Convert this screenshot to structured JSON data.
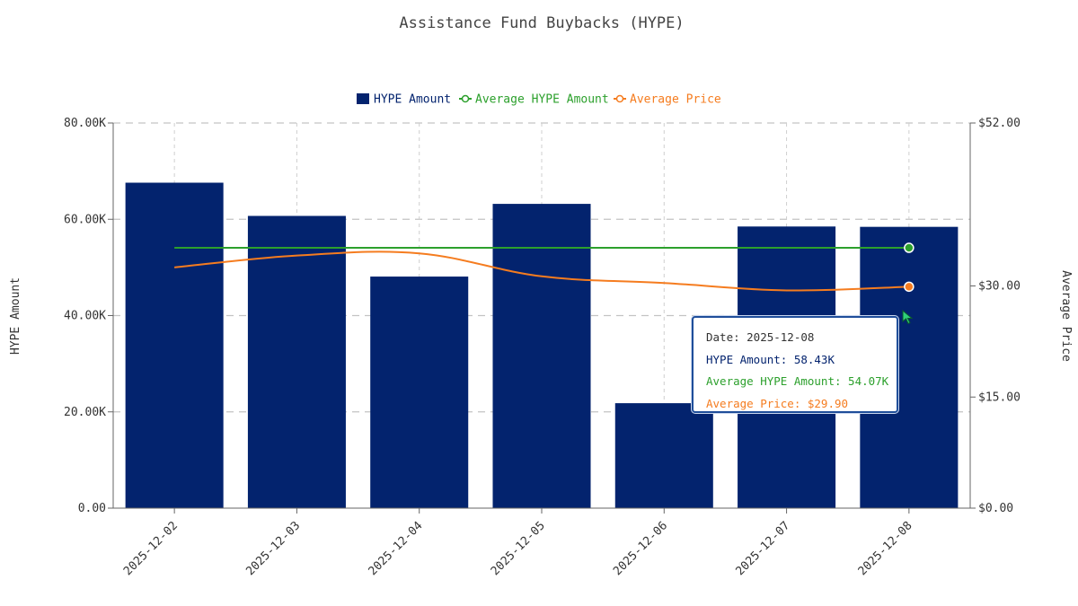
{
  "chart_data": {
    "type": "bar",
    "title": "Assistance Fund Buybacks (HYPE)",
    "categories": [
      "2025-12-02",
      "2025-12-03",
      "2025-12-04",
      "2025-12-05",
      "2025-12-06",
      "2025-12-07",
      "2025-12-08"
    ],
    "series": [
      {
        "name": "HYPE Amount",
        "type": "bar",
        "axis": "left",
        "color": "#03236e",
        "values": [
          67600,
          60700,
          48100,
          63200,
          21800,
          58500,
          58430
        ]
      },
      {
        "name": "Average HYPE Amount",
        "type": "line",
        "axis": "left",
        "color": "#2ca02c",
        "values": [
          54070,
          54070,
          54070,
          54070,
          54070,
          54070,
          54070
        ]
      },
      {
        "name": "Average Price",
        "type": "line",
        "axis": "right",
        "color": "#f57c1f",
        "values": [
          32.5,
          34.1,
          34.4,
          31.3,
          30.4,
          29.4,
          29.9
        ]
      }
    ],
    "y_left": {
      "label": "HYPE Amount",
      "ylim": [
        0,
        80000
      ],
      "ticks": [
        "0.00",
        "20.00K",
        "40.00K",
        "60.00K",
        "80.00K"
      ]
    },
    "y_right": {
      "label": "Average Price",
      "ylim": [
        0,
        52
      ],
      "ticks": [
        "$0.00",
        "$15.00",
        "$30.00",
        "$52.00"
      ],
      "tick_values": [
        0,
        15,
        30,
        52
      ]
    },
    "legend": [
      "HYPE Amount",
      "Average HYPE Amount",
      "Average Price"
    ],
    "legend_position": "top-center",
    "grid": true
  },
  "tooltip": {
    "date_line": "Date: 2025-12-08",
    "hype_line": "HYPE Amount: 58.43K",
    "avg_hype_line": "Average HYPE Amount: 54.07K",
    "avg_price_line": "Average Price: $29.90",
    "colors": {
      "date": "#333333",
      "hype": "#03236e",
      "avg_hype": "#2ca02c",
      "avg_price": "#f57c1f"
    }
  }
}
